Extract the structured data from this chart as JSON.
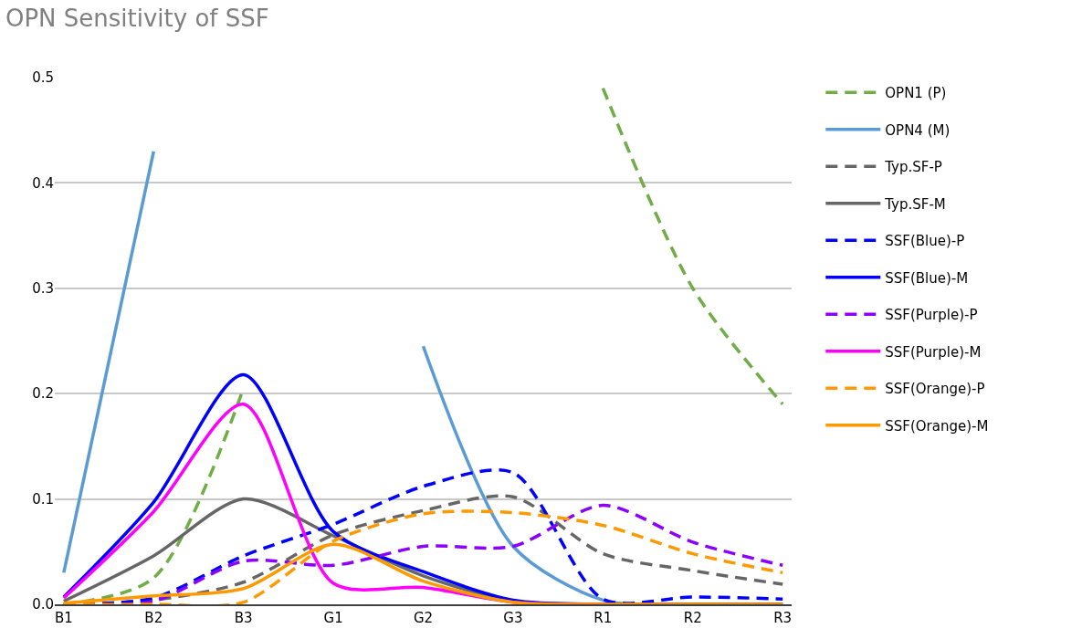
{
  "chart_data": {
    "type": "line",
    "title": "OPN Sensitivity of SSF",
    "categories": [
      "B1",
      "B2",
      "B3",
      "G1",
      "G2",
      "G3",
      "R1",
      "R2",
      "R3"
    ],
    "ylim": [
      0,
      0.5
    ],
    "yticks": [
      {
        "value": 0,
        "label": "0.0"
      },
      0.1,
      0.2,
      0.3,
      0.4,
      0.5
    ],
    "grid": "y",
    "legend": "right",
    "marker": "none",
    "series": [
      {
        "name": "OPN1 (P)",
        "color": "#70ad47",
        "line_style": "dashed",
        "values": [
          0,
          0.025,
          0.205,
          null,
          null,
          null,
          0.49,
          0.3,
          0.19
        ]
      },
      {
        "name": "OPN4 (M)",
        "color": "#5b9bd5",
        "line_style": "solid",
        "values": [
          0.03,
          0.43,
          null,
          null,
          0.245,
          0.055,
          0.004,
          0,
          0
        ]
      },
      {
        "name": "Typ.SF-P",
        "color": "#666666",
        "line_style": "dashed",
        "values": [
          0,
          0.004,
          0.021,
          0.066,
          0.089,
          0.102,
          0.048,
          0.032,
          0.019
        ]
      },
      {
        "name": "Typ.SF-M",
        "color": "#666666",
        "line_style": "solid",
        "values": [
          0.003,
          0.046,
          0.1,
          0.065,
          0.027,
          0.003,
          0,
          0,
          0
        ]
      },
      {
        "name": "SSF(Blue)-P",
        "color": "#0000ff",
        "line_style": "dashed",
        "values": [
          0,
          0.006,
          0.046,
          0.076,
          0.112,
          0.125,
          0.005,
          0.007,
          0.005
        ]
      },
      {
        "name": "SSF(Blue)-M",
        "color": "#0000ff",
        "line_style": "solid",
        "values": [
          0.007,
          0.097,
          0.218,
          0.069,
          0.031,
          0.004,
          0,
          0,
          0
        ]
      },
      {
        "name": "SSF(Purple)-P",
        "color": "#8b00ff",
        "line_style": "dashed",
        "values": [
          0,
          0.003,
          0.041,
          0.037,
          0.055,
          0.055,
          0.094,
          0.059,
          0.037
        ]
      },
      {
        "name": "SSF(Purple)-M",
        "color": "#ff00ff",
        "line_style": "solid",
        "values": [
          0.006,
          0.088,
          0.19,
          0.02,
          0.016,
          0.002,
          0,
          null,
          null
        ]
      },
      {
        "name": "SSF(Orange)-P",
        "color": "#ff9900",
        "line_style": "dashed",
        "values": [
          0,
          0,
          0.002,
          0.06,
          0.086,
          0.087,
          0.075,
          0.048,
          0.03
        ]
      },
      {
        "name": "SSF(Orange)-M",
        "color": "#ff9900",
        "line_style": "solid",
        "values": [
          0.001,
          0.008,
          0.015,
          0.057,
          0.022,
          0.002,
          0,
          0,
          0
        ]
      }
    ]
  }
}
